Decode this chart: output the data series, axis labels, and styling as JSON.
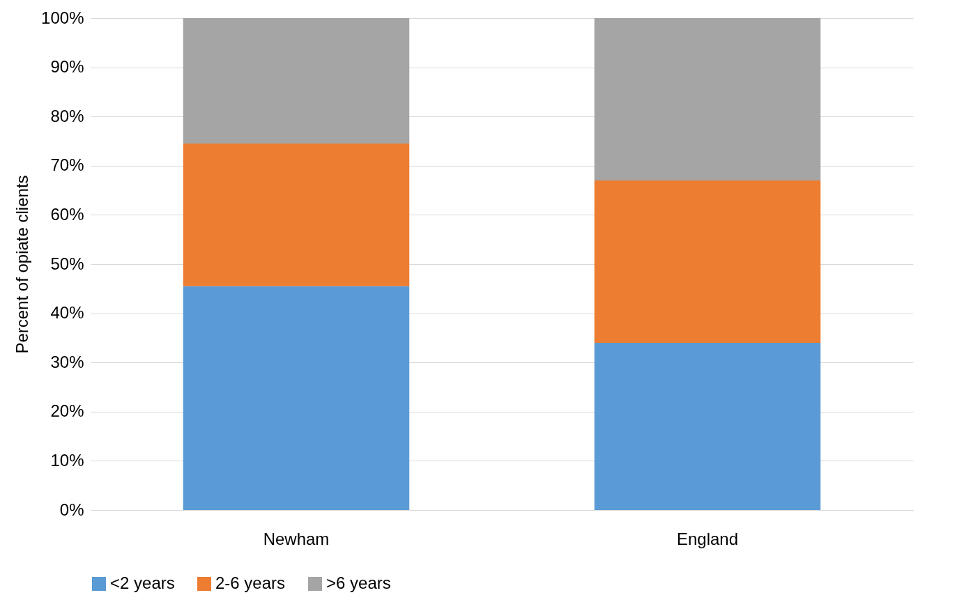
{
  "chart_data": {
    "type": "bar",
    "stacked": true,
    "ylabel": "Percent of opiate clients",
    "categories": [
      "Newham",
      "England"
    ],
    "series": [
      {
        "name": "<2 years",
        "color": "#5b9bd5",
        "values": [
          45.5,
          34
        ]
      },
      {
        "name": "2-6 years",
        "color": "#ed7d31",
        "values": [
          29,
          33
        ]
      },
      {
        "name": ">6 years",
        "color": "#a5a5a5",
        "values": [
          25.5,
          33
        ]
      }
    ],
    "ylim": [
      0,
      100
    ],
    "yticks": [
      {
        "value": 0,
        "label": "0%"
      },
      {
        "value": 10,
        "label": "10%"
      },
      {
        "value": 20,
        "label": "20%"
      },
      {
        "value": 30,
        "label": "30%"
      },
      {
        "value": 40,
        "label": "40%"
      },
      {
        "value": 50,
        "label": "50%"
      },
      {
        "value": 60,
        "label": "60%"
      },
      {
        "value": 70,
        "label": "70%"
      },
      {
        "value": 80,
        "label": "80%"
      },
      {
        "value": 90,
        "label": "90%"
      },
      {
        "value": 100,
        "label": "100%"
      }
    ],
    "grid": "y",
    "legend": "bottom"
  }
}
